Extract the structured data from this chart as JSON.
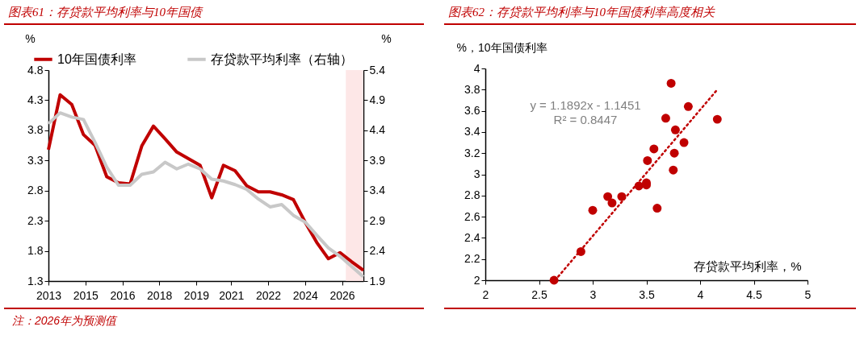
{
  "chart_data": [
    {
      "type": "line",
      "title": "图表61：存贷款平均利率与10年国债",
      "ylabel": "%",
      "y2label": "%",
      "x": [
        "2013-06",
        "2013-12",
        "2014-06",
        "2014-12",
        "2015-06",
        "2015-12",
        "2016-06",
        "2016-12",
        "2017-06",
        "2017-12",
        "2018-06",
        "2018-12",
        "2019-06",
        "2019-12",
        "2020-06",
        "2020-12",
        "2021-06",
        "2021-12",
        "2022-06",
        "2022-12",
        "2023-06",
        "2023-12",
        "2024-06",
        "2024-12",
        "2025-06",
        "2025-12",
        "2026-06",
        "2026-12"
      ],
      "xlim": [
        "2013-06",
        "2026-12"
      ],
      "xticks": [
        {
          "value": "2013-06",
          "label": "2013"
        },
        {
          "value": "2015-01",
          "label": "2015"
        },
        {
          "value": "2016-08",
          "label": "2016"
        },
        {
          "value": "2018-03",
          "label": "2018"
        },
        {
          "value": "2019-10",
          "label": "2019"
        },
        {
          "value": "2021-04",
          "label": "2021"
        },
        {
          "value": "2022-11",
          "label": "2022"
        },
        {
          "value": "2024-06",
          "label": "2024"
        },
        {
          "value": "2026-01",
          "label": "2026"
        }
      ],
      "ylim": [
        1.3,
        4.8
      ],
      "yticks": [
        1.3,
        1.8,
        2.3,
        2.8,
        3.3,
        3.8,
        4.3,
        4.8
      ],
      "y2lim": [
        1.9,
        5.4
      ],
      "y2ticks": [
        1.9,
        2.4,
        2.9,
        3.4,
        3.9,
        4.4,
        4.9,
        5.4
      ],
      "series": [
        {
          "name": "10年国债利率",
          "color": "#c00000",
          "values": [
            3.48,
            4.39,
            4.23,
            3.73,
            3.55,
            3.03,
            2.93,
            2.91,
            3.54,
            3.87,
            3.66,
            3.44,
            3.33,
            3.22,
            2.68,
            3.22,
            3.13,
            2.88,
            2.78,
            2.78,
            2.73,
            2.65,
            2.28,
            1.94,
            1.67,
            1.77,
            1.62,
            1.48
          ]
        },
        {
          "name": "存贷款平均利率（右轴）",
          "color": "#c8c8c8",
          "axis": "y2",
          "values": [
            4.51,
            4.69,
            4.62,
            4.58,
            4.2,
            3.79,
            3.49,
            3.49,
            3.67,
            3.71,
            3.87,
            3.76,
            3.84,
            3.76,
            3.59,
            3.56,
            3.5,
            3.42,
            3.26,
            3.13,
            3.17,
            2.99,
            2.88,
            2.66,
            2.45,
            2.31,
            2.14,
            1.97
          ]
        }
      ],
      "bands": [
        {
          "axis": "x",
          "from": "2026-03",
          "to": "2026-12",
          "color": "#fde4e4"
        }
      ],
      "annotations": [
        "注：2026年为预测值"
      ],
      "legend": "top"
    },
    {
      "type": "scatter",
      "title": "图表62：存贷款平均利率与10年国债利率高度相关",
      "xlabel": "存贷款平均利率，%",
      "ylabel": "%，10年国债利率",
      "xlim": [
        2,
        5
      ],
      "xticks": [
        2,
        2.5,
        3,
        3.5,
        4,
        4.5,
        5
      ],
      "ylim": [
        2,
        4
      ],
      "yticks": [
        2,
        2.2,
        2.4,
        2.6,
        2.8,
        3,
        3.2,
        3.4,
        3.6,
        3.8,
        4
      ],
      "series": [
        {
          "color": "#c00000",
          "x": [
            3.73,
            3.89,
            3.68,
            4.16,
            3.77,
            3.85,
            3.57,
            3.51,
            3.76,
            3.75,
            3.5,
            3.5,
            3.43,
            3.14,
            3.27,
            3.18,
            3.0,
            3.6,
            2.89,
            2.64
          ],
          "values": [
            3.86,
            3.64,
            3.53,
            3.52,
            3.42,
            3.3,
            3.24,
            3.13,
            3.2,
            3.04,
            2.92,
            2.9,
            2.89,
            2.79,
            2.79,
            2.73,
            2.66,
            2.68,
            2.27,
            2.0
          ]
        },
        {
          "type": "line",
          "color": "#c00000",
          "line_style": "dotted",
          "x": [
            2.65,
            4.16
          ],
          "values": [
            2.0,
            3.8
          ]
        }
      ],
      "annotations": [
        "y = 1.1892x - 1.1451",
        "R² = 0.8447"
      ]
    }
  ]
}
